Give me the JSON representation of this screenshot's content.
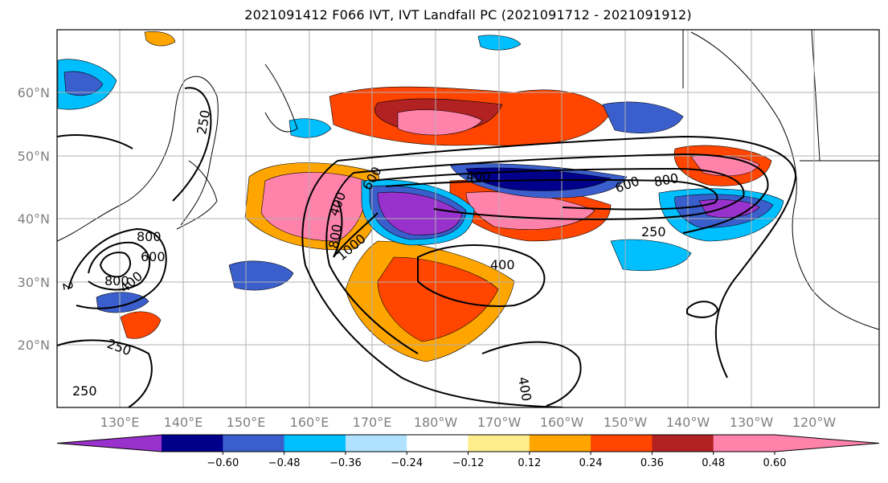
{
  "title": "2021091412 F066 IVT, IVT Landfall PC (2021091712 - 2021091912)",
  "map": {
    "lat_labels": [
      "60°N",
      "50°N",
      "40°N",
      "30°N",
      "20°N"
    ],
    "lon_labels": [
      "130°E",
      "140°E",
      "150°E",
      "160°E",
      "170°E",
      "180°W",
      "170°W",
      "160°W",
      "150°W",
      "140°W",
      "130°W",
      "120°W"
    ],
    "contour_labels": [
      "250",
      "250",
      "800",
      "600",
      "800",
      "400",
      "400",
      "400",
      "600",
      "800",
      "250",
      "600",
      "800",
      "1000",
      "400",
      "400",
      "2",
      "250"
    ]
  },
  "colorbar": {
    "colors": [
      "#9932cc",
      "#00008b",
      "#3a5fcd",
      "#00bfff",
      "#b0e2ff",
      "#ffffff",
      "#ffec8b",
      "#ffa500",
      "#ff4500",
      "#b22222",
      "#ff82ab",
      "#ff82ab"
    ],
    "tick_labels": [
      "−0.60",
      "−0.48",
      "−0.36",
      "−0.24",
      "−0.12",
      "0.12",
      "0.24",
      "0.36",
      "0.48",
      "0.60"
    ]
  }
}
